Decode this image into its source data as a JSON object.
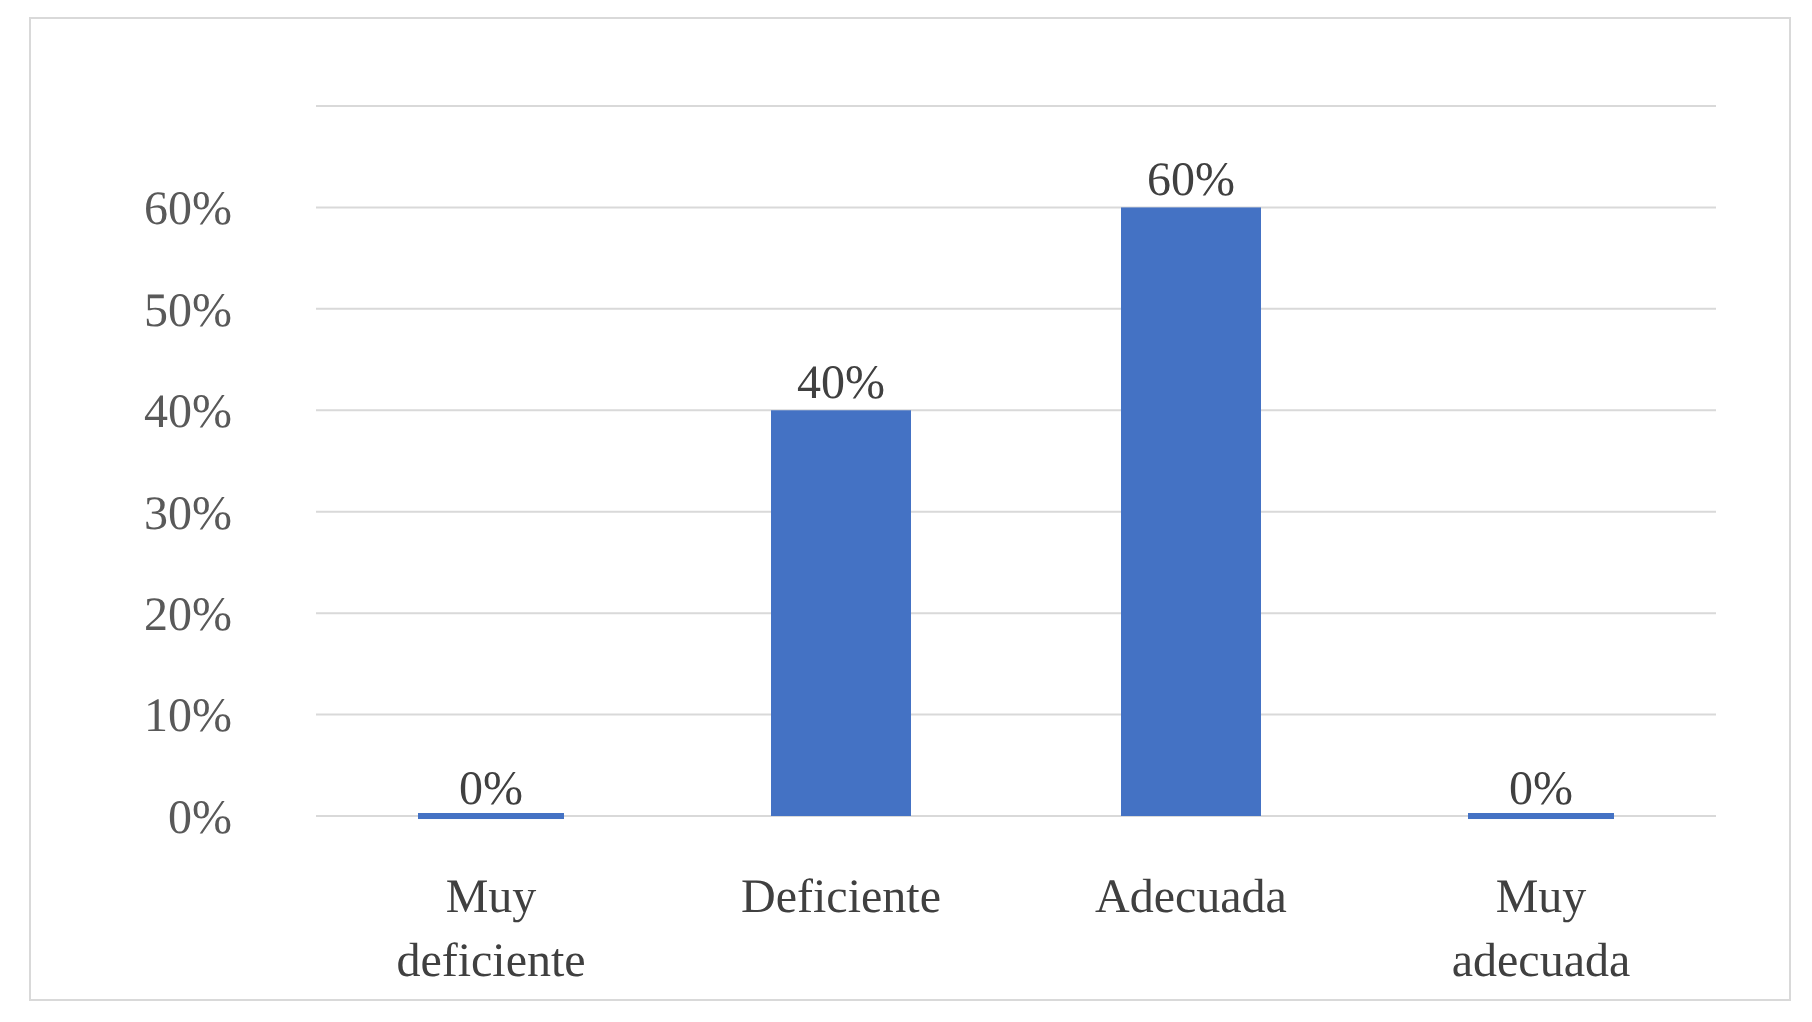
{
  "chart_data": {
    "type": "bar",
    "categories": [
      "Muy deficiente",
      "Deficiente",
      "Adecuada",
      "Muy adecuada"
    ],
    "values": [
      0,
      40,
      60,
      0
    ],
    "color": "#4472c4",
    "value_labels": [
      "0%",
      "40%",
      "60%",
      "0%"
    ],
    "ylim": [
      0,
      70
    ],
    "yticks": [
      {
        "value": 0,
        "label": "0%"
      },
      {
        "value": 10,
        "label": "10%"
      },
      {
        "value": 20,
        "label": "20%"
      },
      {
        "value": 30,
        "label": "30%"
      },
      {
        "value": 40,
        "label": "40%"
      },
      {
        "value": 50,
        "label": "50%"
      },
      {
        "value": 60,
        "label": "60%"
      },
      {
        "value": 70,
        "label": null
      }
    ],
    "grid": "y"
  }
}
